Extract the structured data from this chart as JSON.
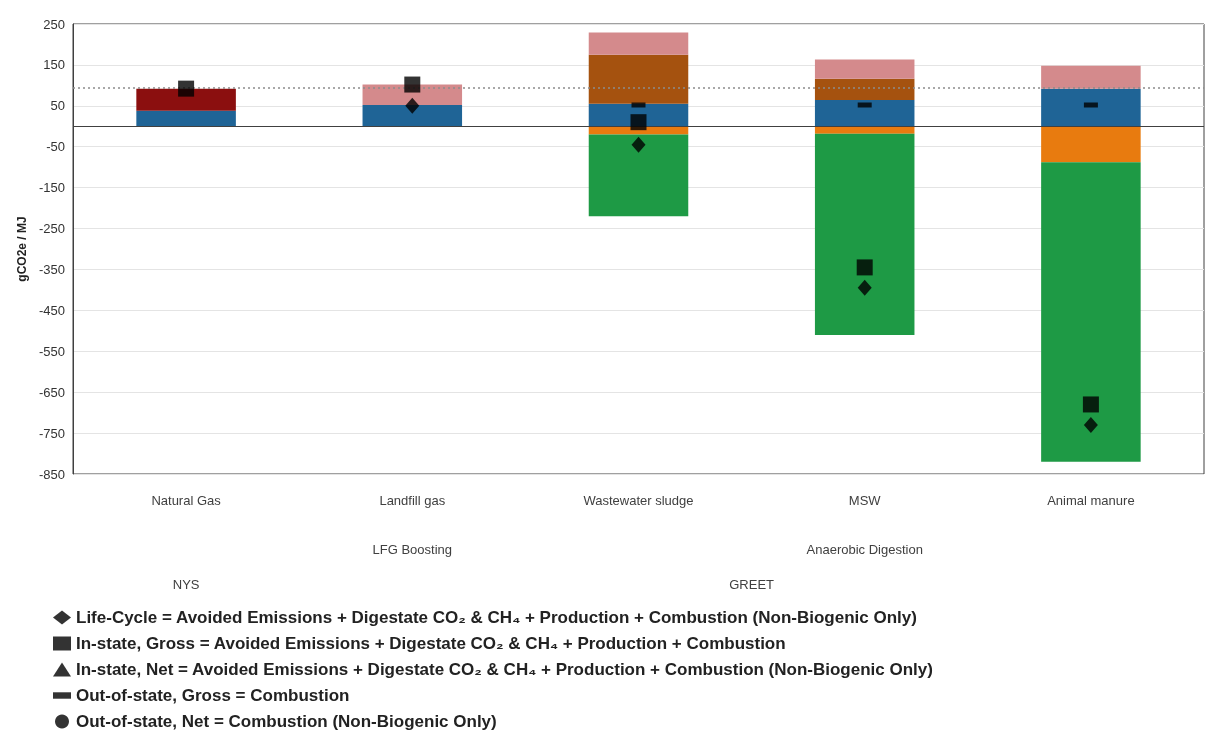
{
  "chart_data": {
    "type": "bar",
    "stacked": true,
    "ylabel": "gCO2e / MJ",
    "categories": [
      "Natural Gas",
      "Landfill gas",
      "Wastewater sludge",
      "MSW",
      "Animal manure"
    ],
    "ylim": [
      -850,
      250
    ],
    "yticks": [
      -850,
      -750,
      -650,
      -550,
      -450,
      -350,
      -250,
      -150,
      -50,
      50,
      150,
      250
    ],
    "grid": "y",
    "legend": "bottom left",
    "series": [
      {
        "color": "#e87b0f",
        "values": [
          null,
          null,
          -20,
          -18,
          -88
        ]
      },
      {
        "color": "#1e9a45",
        "values": [
          null,
          null,
          -200,
          -492,
          -732
        ]
      },
      {
        "color": "#1f6496",
        "values": [
          38,
          52,
          55,
          64,
          92
        ]
      },
      {
        "color": "#a5520f",
        "values": [
          null,
          null,
          120,
          52,
          null
        ]
      },
      {
        "color": "#8b0f0f",
        "values": [
          54,
          null,
          null,
          null,
          null
        ]
      },
      {
        "color": "#d48a8c",
        "values": [
          null,
          50,
          54,
          47,
          56
        ]
      },
      {
        "type": "scatter",
        "name": "Life-Cycle = Avoided Emissions + Digestate CO₂ & CH₄ + Production + Combustion (Non-Biogenic Only)",
        "marker": "diamond",
        "color": "#000000",
        "x": [
          "Natural Gas",
          "Landfill gas",
          "Wastewater sludge",
          "MSW",
          "Animal manure"
        ],
        "values": [
          null,
          50,
          -45,
          -395,
          -730
        ]
      },
      {
        "type": "scatter",
        "name": "In-state, Gross = Avoided Emissions + Digestate CO₂ & CH₄ + Production + Combustion",
        "marker": "square",
        "color": "#000000",
        "x": [
          "Natural Gas",
          "Landfill gas",
          "Wastewater sludge",
          "MSW",
          "Animal manure"
        ],
        "values": [
          92,
          102,
          10,
          -345,
          -680
        ]
      },
      {
        "type": "scatter",
        "name": "In-state, Net = Avoided Emissions + Digestate CO₂ & CH₄ + Production + Combustion (Non-Biogenic Only)",
        "marker": "triangle",
        "color": "#000000",
        "x": [
          "Natural Gas",
          "Landfill gas",
          "Wastewater sludge",
          "MSW",
          "Animal manure"
        ],
        "values": [
          null,
          null,
          null,
          null,
          null
        ]
      },
      {
        "type": "scatter",
        "name": "Out-of-state, Gross = Combustion",
        "color": "#000000",
        "x": [
          "Natural Gas",
          "Landfill gas",
          "Wastewater sludge",
          "MSW",
          "Animal manure"
        ],
        "values": [
          null,
          null,
          52,
          52,
          52
        ]
      },
      {
        "type": "scatter",
        "name": "Out-of-state, Net = Combustion (Non-Biogenic Only)",
        "marker": "circle",
        "color": "#000000",
        "x": [
          "Natural Gas",
          "Landfill gas",
          "Wastewater sludge",
          "MSW",
          "Animal manure"
        ],
        "values": [
          null,
          null,
          null,
          null,
          null
        ]
      }
    ],
    "ref_lines": [
      {
        "axis": "y",
        "value": 94,
        "line_style": "dotted",
        "color": "#8c8c8c"
      }
    ],
    "annotations": [
      "LFG Boosting",
      "Anaerobic Digestion",
      "NYS",
      "GREET"
    ]
  }
}
